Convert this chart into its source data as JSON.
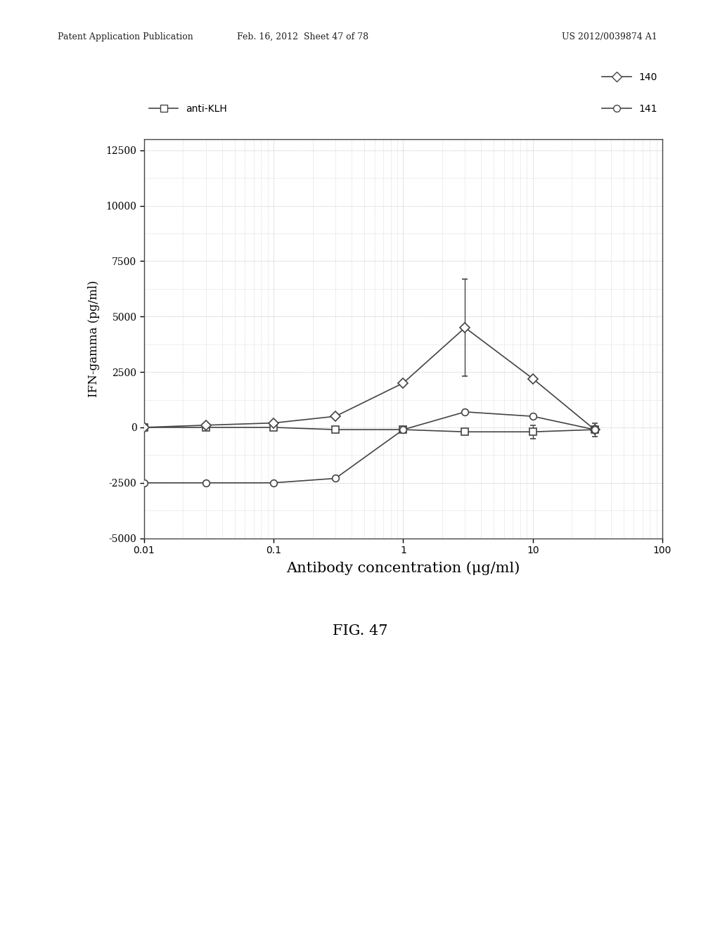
{
  "title": "FIG. 47",
  "xlabel": "Antibody concentration (μg/ml)",
  "ylabel": "IFN-gamma (pg/ml)",
  "xlim": [
    0.01,
    100
  ],
  "ylim": [
    -5000,
    13000
  ],
  "yticks": [
    -5000,
    -2500,
    0,
    2500,
    5000,
    7500,
    10000,
    12500
  ],
  "xticks": [
    0.01,
    0.1,
    1,
    10,
    100
  ],
  "xtick_labels": [
    "0.01",
    "0.1",
    "1",
    "10",
    "100"
  ],
  "series": {
    "anti_KLH": {
      "label": "anti-KLH",
      "x": [
        0.01,
        0.03,
        0.1,
        0.3,
        1.0,
        3.0,
        10.0,
        30.0
      ],
      "y": [
        0,
        0,
        0,
        -100,
        -100,
        -200,
        -200,
        -100
      ],
      "yerr": [
        0,
        0,
        0,
        0,
        0,
        0,
        300,
        0
      ],
      "color": "#444444",
      "marker": "s",
      "markersize": 7,
      "linestyle": "-",
      "linewidth": 1.2
    },
    "line140": {
      "label": "140",
      "x": [
        0.01,
        0.03,
        0.1,
        0.3,
        1.0,
        3.0,
        10.0,
        30.0
      ],
      "y": [
        0,
        100,
        200,
        500,
        2000,
        4500,
        2200,
        -100
      ],
      "yerr": [
        0,
        0,
        0,
        0,
        0,
        2200,
        0,
        0
      ],
      "color": "#444444",
      "marker": "D",
      "markersize": 7,
      "linestyle": "-",
      "linewidth": 1.2
    },
    "line141": {
      "label": "141",
      "x": [
        0.01,
        0.03,
        0.1,
        0.3,
        1.0,
        3.0,
        10.0,
        30.0
      ],
      "y": [
        -2500,
        -2500,
        -2500,
        -2300,
        -100,
        700,
        500,
        -100
      ],
      "yerr": [
        0,
        0,
        0,
        0,
        0,
        0,
        0,
        300
      ],
      "color": "#444444",
      "marker": "o",
      "markersize": 7,
      "linestyle": "-",
      "linewidth": 1.2
    }
  },
  "header_left": "Patent Application Publication",
  "header_mid": "Feb. 16, 2012  Sheet 47 of 78",
  "header_right": "US 2012/0039874 A1",
  "fig_label": "FIG. 47",
  "background_color": "#ffffff",
  "grid_color": "#999999"
}
